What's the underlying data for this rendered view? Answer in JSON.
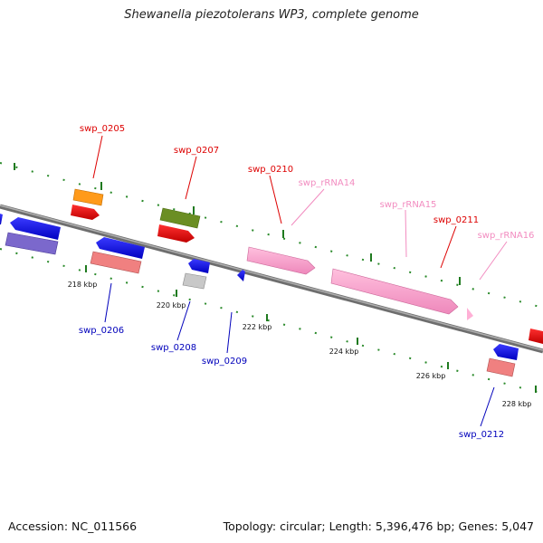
{
  "title": "Shewanella piezotolerans WP3, complete genome",
  "footer": {
    "accession": "Accession: NC_011566",
    "summary": "Topology: circular; Length: 5,396,476 bp; Genes: 5,047"
  },
  "colors": {
    "backbone": "#8c8c8c",
    "tick_marks": "#2a8a2a",
    "forward_label": "#dd0000",
    "reverse_label": "#0000bb",
    "rrna_label": "#f28cc0"
  },
  "ticks": [
    "218 kbp",
    "220 kbp",
    "222 kbp",
    "224 kbp",
    "226 kbp",
    "228 kbp"
  ],
  "labels": [
    {
      "id": "swp_0205",
      "text": "swp_0205",
      "kind": "forward"
    },
    {
      "id": "swp_0207",
      "text": "swp_0207",
      "kind": "forward"
    },
    {
      "id": "swp_0210",
      "text": "swp_0210",
      "kind": "forward"
    },
    {
      "id": "swp_rRNA14",
      "text": "swp_rRNA14",
      "kind": "rrna"
    },
    {
      "id": "swp_rRNA15",
      "text": "swp_rRNA15",
      "kind": "rrna"
    },
    {
      "id": "swp_0211",
      "text": "swp_0211",
      "kind": "forward"
    },
    {
      "id": "swp_rRNA16",
      "text": "swp_rRNA16",
      "kind": "rrna"
    },
    {
      "id": "swp_0206",
      "text": "swp_0206",
      "kind": "reverse"
    },
    {
      "id": "swp_0208",
      "text": "swp_0208",
      "kind": "reverse"
    },
    {
      "id": "swp_0209",
      "text": "swp_0209",
      "kind": "reverse"
    },
    {
      "id": "swp_0212",
      "text": "swp_0212",
      "kind": "reverse"
    }
  ]
}
